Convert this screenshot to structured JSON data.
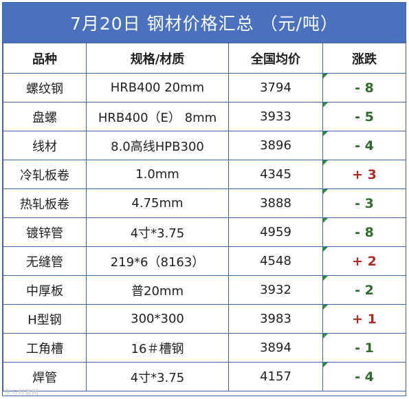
{
  "title": "7月20日 钢材价格汇总 （元/吨）",
  "headers": {
    "variety": "品种",
    "spec": "规格/材质",
    "price": "全国均价",
    "change": "涨跌"
  },
  "rows": [
    {
      "variety": "螺纹钢",
      "spec": "HRB400 20mm",
      "price": "3794",
      "change": "- 8",
      "direction": "down"
    },
    {
      "variety": "盘螺",
      "spec": "HRB400（E） 8mm",
      "price": "3933",
      "change": "- 5",
      "direction": "down"
    },
    {
      "variety": "线材",
      "spec": "8.0高线HPB300",
      "price": "3896",
      "change": "- 4",
      "direction": "down"
    },
    {
      "variety": "冷轧板卷",
      "spec": "1.0mm",
      "price": "4345",
      "change": "+ 3",
      "direction": "up"
    },
    {
      "variety": "热轧板卷",
      "spec": "4.75mm",
      "price": "3888",
      "change": "- 3",
      "direction": "down"
    },
    {
      "variety": "镀锌管",
      "spec": "4寸*3.75",
      "price": "4959",
      "change": "- 8",
      "direction": "down"
    },
    {
      "variety": "无缝管",
      "spec": "219*6（8163）",
      "price": "4548",
      "change": "+ 2",
      "direction": "up"
    },
    {
      "variety": "中厚板",
      "spec": "普20mm",
      "price": "3932",
      "change": "- 2",
      "direction": "down"
    },
    {
      "variety": "H型钢",
      "spec": "300*300",
      "price": "3983",
      "change": "+ 1",
      "direction": "up"
    },
    {
      "variety": "工角槽",
      "spec": "16＃槽钢",
      "price": "3894",
      "change": "- 1",
      "direction": "down"
    },
    {
      "variety": "焊管",
      "spec": "4寸*3.75",
      "price": "4157",
      "change": "- 4",
      "direction": "down"
    }
  ],
  "colors": {
    "title_bg": "#4a71bd",
    "border": "#3d62a8",
    "down": "#2e6b2a",
    "up": "#b02a25"
  },
  "watermark": "东方财富网"
}
